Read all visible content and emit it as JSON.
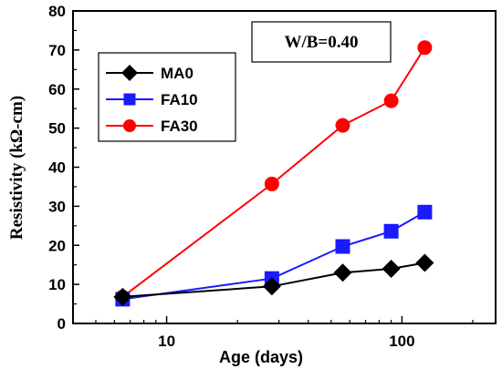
{
  "chart_data": {
    "type": "line",
    "xlabel": "Age (days)",
    "ylabel": "Resistivity (kΩ-cm)",
    "x_scale": "log",
    "xlim": [
      4,
      250
    ],
    "ylim": [
      0,
      80
    ],
    "x_ticks": [
      10,
      100
    ],
    "y_ticks": [
      0,
      10,
      20,
      30,
      40,
      50,
      60,
      70,
      80
    ],
    "grid": false,
    "legend_position": "top-left",
    "annotation": "W/B=0.40",
    "series": [
      {
        "name": "MA0",
        "color": "#000000",
        "marker": "diamond",
        "x": [
          6.5,
          28,
          56,
          90,
          125
        ],
        "y": [
          6.8,
          9.5,
          13.0,
          14.0,
          15.5
        ]
      },
      {
        "name": "FA10",
        "color": "#1a1aff",
        "marker": "square",
        "x": [
          6.5,
          28,
          56,
          90,
          125
        ],
        "y": [
          6.2,
          11.5,
          19.7,
          23.6,
          28.5
        ]
      },
      {
        "name": "FA30",
        "color": "#ff0000",
        "marker": "circle",
        "x": [
          6.5,
          28,
          56,
          90,
          125
        ],
        "y": [
          6.8,
          35.7,
          50.7,
          57.0,
          70.6
        ]
      }
    ]
  }
}
